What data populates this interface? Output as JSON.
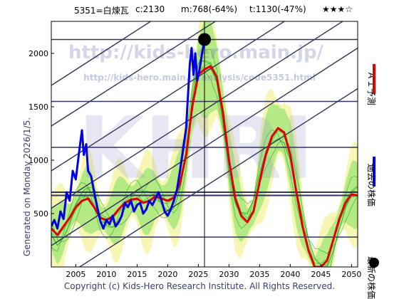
{
  "header": {
    "ticker": "5351=白煉瓦",
    "close": "c:2130",
    "median": "m:768(-64%)",
    "target": "t:1130(-47%)",
    "stars": "★★★☆"
  },
  "watermark": {
    "url_main": "http://kids-hero.main.jp/",
    "url_sub": "http://kids-hero.main.jp/analysis/code5351.html",
    "logo": "KHRI"
  },
  "footer": {
    "copyright": "Copyright (c) Kids-Hero Research Institute. All Rights Reserved."
  },
  "side": {
    "generated": "Generated on Monday 2026/1/5."
  },
  "legend": [
    {
      "label": "ＡＩ予測",
      "color": "#e00000",
      "kind": "line"
    },
    {
      "label": "過去の株価",
      "color": "#0000e0",
      "kind": "line"
    },
    {
      "label": "最新の株価",
      "color": "#000000",
      "kind": "dot"
    }
  ],
  "colors": {
    "band_yellow": "#f7f4a8",
    "band_green": "#a8e67a",
    "band_line": "#22aa22",
    "grid_navy": "#33335f",
    "frame": "#000000"
  },
  "chart_data": {
    "type": "line",
    "xlim": [
      2001,
      2051
    ],
    "ylim": [
      0,
      2300
    ],
    "x_ticks": [
      2005,
      2010,
      2015,
      2020,
      2025,
      2030,
      2035,
      2040,
      2045,
      2050
    ],
    "y_ticks": [
      500,
      1000,
      1500,
      2000
    ],
    "horizontal_levels": [
      2130,
      1550,
      1120,
      700,
      670,
      280
    ],
    "trend_lines": [
      {
        "x0": 2001,
        "y0": -170,
        "x1": 2051,
        "y1": 1670
      },
      {
        "x0": 2001,
        "y0": 200,
        "x1": 2051,
        "y1": 2050
      },
      {
        "x0": 2001,
        "y0": 550,
        "x1": 2051,
        "y1": 2390
      },
      {
        "x0": 2001,
        "y0": 900,
        "x1": 2051,
        "y1": 2740
      },
      {
        "x0": 2001,
        "y0": 1320,
        "x1": 2051,
        "y1": 3150
      },
      {
        "x0": 2001,
        "y0": 1700,
        "x1": 2051,
        "y1": 3550
      }
    ],
    "latest": {
      "x": 2026.0,
      "y": 2130
    },
    "series": [
      {
        "name": "過去の株価",
        "color": "#0000e0",
        "points": [
          [
            2001,
            380
          ],
          [
            2001.5,
            440
          ],
          [
            2002,
            360
          ],
          [
            2002.5,
            520
          ],
          [
            2003,
            450
          ],
          [
            2003.5,
            700
          ],
          [
            2004,
            620
          ],
          [
            2004.5,
            900
          ],
          [
            2005,
            820
          ],
          [
            2005.5,
            1060
          ],
          [
            2006,
            1280
          ],
          [
            2006.3,
            1050
          ],
          [
            2006.7,
            1150
          ],
          [
            2007,
            900
          ],
          [
            2007.5,
            850
          ],
          [
            2008,
            700
          ],
          [
            2008.5,
            560
          ],
          [
            2009,
            430
          ],
          [
            2009.5,
            360
          ],
          [
            2010,
            440
          ],
          [
            2010.5,
            400
          ],
          [
            2011,
            480
          ],
          [
            2011.5,
            380
          ],
          [
            2012,
            420
          ],
          [
            2012.5,
            480
          ],
          [
            2013,
            600
          ],
          [
            2013.5,
            560
          ],
          [
            2014,
            620
          ],
          [
            2014.5,
            520
          ],
          [
            2015,
            580
          ],
          [
            2015.5,
            600
          ],
          [
            2016,
            500
          ],
          [
            2016.5,
            540
          ],
          [
            2017,
            620
          ],
          [
            2017.5,
            580
          ],
          [
            2018,
            640
          ],
          [
            2018.5,
            700
          ],
          [
            2019,
            620
          ],
          [
            2019.5,
            520
          ],
          [
            2020,
            480
          ],
          [
            2020.5,
            540
          ],
          [
            2021,
            620
          ],
          [
            2021.5,
            720
          ],
          [
            2022,
            900
          ],
          [
            2022.5,
            1100
          ],
          [
            2023,
            1300
          ],
          [
            2023.3,
            1600
          ],
          [
            2023.6,
            1900
          ],
          [
            2023.9,
            2050
          ],
          [
            2024.2,
            1800
          ],
          [
            2024.5,
            2000
          ],
          [
            2024.8,
            1750
          ],
          [
            2025.2,
            1850
          ],
          [
            2025.6,
            2000
          ],
          [
            2026,
            2130
          ]
        ]
      },
      {
        "name": "ＡＩ予測",
        "color": "#e00000",
        "points": [
          [
            2001,
            360
          ],
          [
            2002,
            300
          ],
          [
            2003,
            380
          ],
          [
            2004,
            460
          ],
          [
            2005,
            560
          ],
          [
            2006,
            620
          ],
          [
            2007,
            640
          ],
          [
            2008,
            560
          ],
          [
            2009,
            460
          ],
          [
            2010,
            440
          ],
          [
            2011,
            470
          ],
          [
            2012,
            540
          ],
          [
            2013,
            600
          ],
          [
            2014,
            630
          ],
          [
            2015,
            640
          ],
          [
            2016,
            600
          ],
          [
            2017,
            620
          ],
          [
            2018,
            660
          ],
          [
            2019,
            640
          ],
          [
            2020,
            620
          ],
          [
            2021,
            650
          ],
          [
            2022,
            780
          ],
          [
            2023,
            1050
          ],
          [
            2024,
            1500
          ],
          [
            2025,
            1800
          ],
          [
            2026,
            1850
          ],
          [
            2027,
            1880
          ],
          [
            2028,
            1780
          ],
          [
            2029,
            1450
          ],
          [
            2030,
            1000
          ],
          [
            2031,
            650
          ],
          [
            2032,
            480
          ],
          [
            2033,
            420
          ],
          [
            2034,
            520
          ],
          [
            2035,
            800
          ],
          [
            2036,
            1050
          ],
          [
            2037,
            1220
          ],
          [
            2038,
            1300
          ],
          [
            2039,
            1260
          ],
          [
            2040,
            1050
          ],
          [
            2041,
            700
          ],
          [
            2042,
            380
          ],
          [
            2043,
            150
          ],
          [
            2044,
            0
          ],
          [
            2045,
            0
          ],
          [
            2046,
            60
          ],
          [
            2047,
            250
          ],
          [
            2048,
            450
          ],
          [
            2049,
            600
          ],
          [
            2050,
            680
          ],
          [
            2051,
            670
          ]
        ]
      }
    ]
  }
}
